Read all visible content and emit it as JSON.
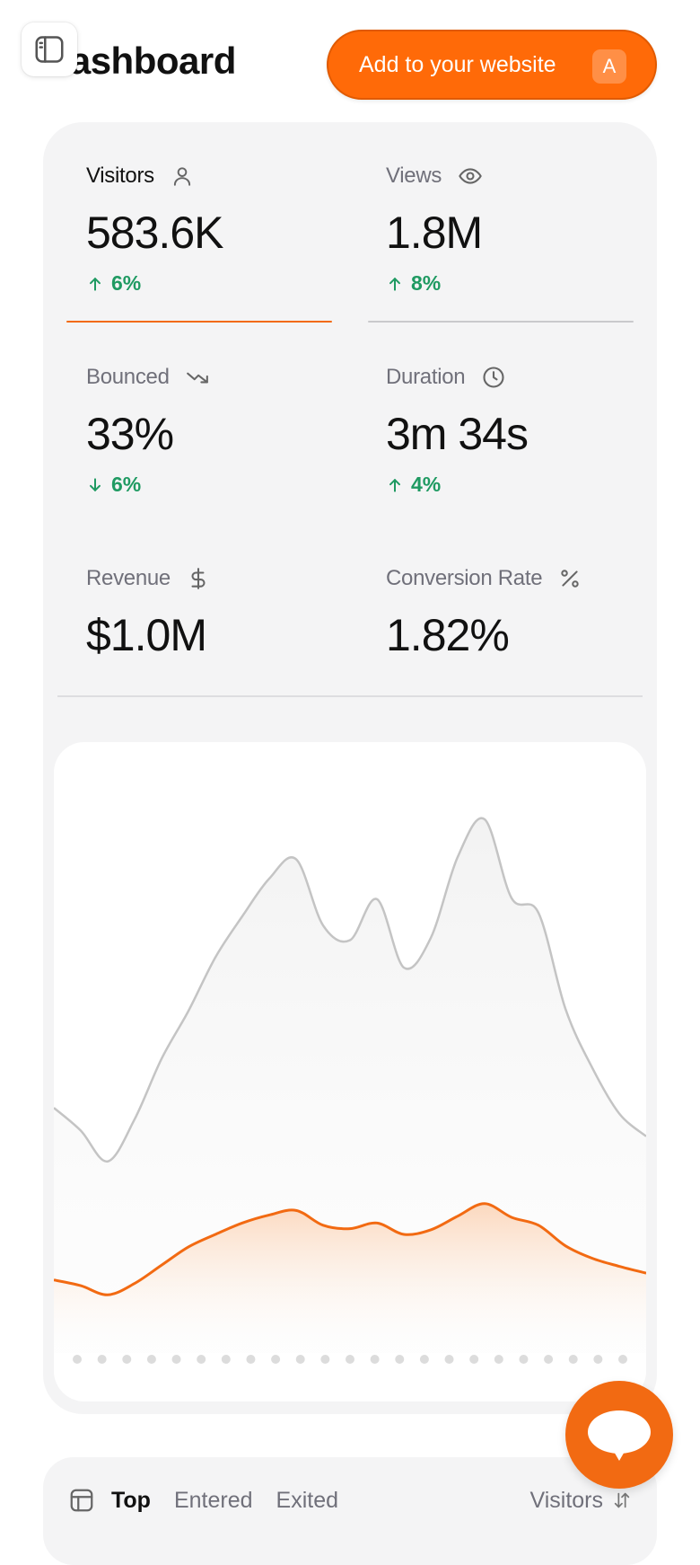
{
  "header": {
    "title": "Dashboard",
    "add_button_label": "Add to your website",
    "add_button_shortcut": "A"
  },
  "stats": [
    {
      "label": "Visitors",
      "value": "583.6K",
      "change": "6%",
      "direction": "up",
      "icon": "user-icon",
      "active": true
    },
    {
      "label": "Views",
      "value": "1.8M",
      "change": "8%",
      "direction": "up",
      "icon": "eye-icon",
      "active": false
    },
    {
      "label": "Bounced",
      "value": "33%",
      "change": "6%",
      "direction": "down",
      "icon": "trending-down-icon",
      "active": false
    },
    {
      "label": "Duration",
      "value": "3m 34s",
      "change": "4%",
      "direction": "up",
      "icon": "clock-icon",
      "active": false
    },
    {
      "label": "Revenue",
      "value": "$1.0M",
      "icon": "dollar-icon",
      "active": false
    },
    {
      "label": "Conversion Rate",
      "value": "1.82%",
      "icon": "percent-icon",
      "active": false
    }
  ],
  "colors": {
    "accent": "#ff6a08",
    "positive": "#1f9a62",
    "views_line": "#c4c4c4",
    "visitors_line": "#f26a12"
  },
  "chart_data": {
    "type": "area",
    "x": [
      1,
      2,
      3,
      4,
      5,
      6,
      7,
      8,
      9,
      10,
      11,
      12,
      13,
      14,
      15,
      16,
      17,
      18,
      19,
      20,
      21,
      22,
      23
    ],
    "series": [
      {
        "values": [
          2150,
          1950,
          1680,
          2050,
          2580,
          3000,
          3470,
          3830,
          4160,
          4330,
          3750,
          3620,
          3980,
          3380,
          3640,
          4350,
          4680,
          3990,
          3860,
          3020,
          2500,
          2100,
          1900
        ]
      },
      {
        "values": [
          640,
          590,
          510,
          610,
          770,
          930,
          1040,
          1140,
          1210,
          1250,
          1120,
          1090,
          1140,
          1040,
          1080,
          1200,
          1310,
          1190,
          1120,
          940,
          830,
          760,
          700
        ]
      }
    ],
    "ylim": [
      0,
      5200
    ],
    "grid": false
  },
  "chart": {
    "dot_color": "#dcdcdc"
  },
  "bottom_tabs": {
    "tabs": [
      "Top",
      "Entered",
      "Exited"
    ],
    "active_tab": "Top",
    "sort_label": "Visitors"
  },
  "chat_button": {
    "icon": "chat-bubble-icon"
  }
}
